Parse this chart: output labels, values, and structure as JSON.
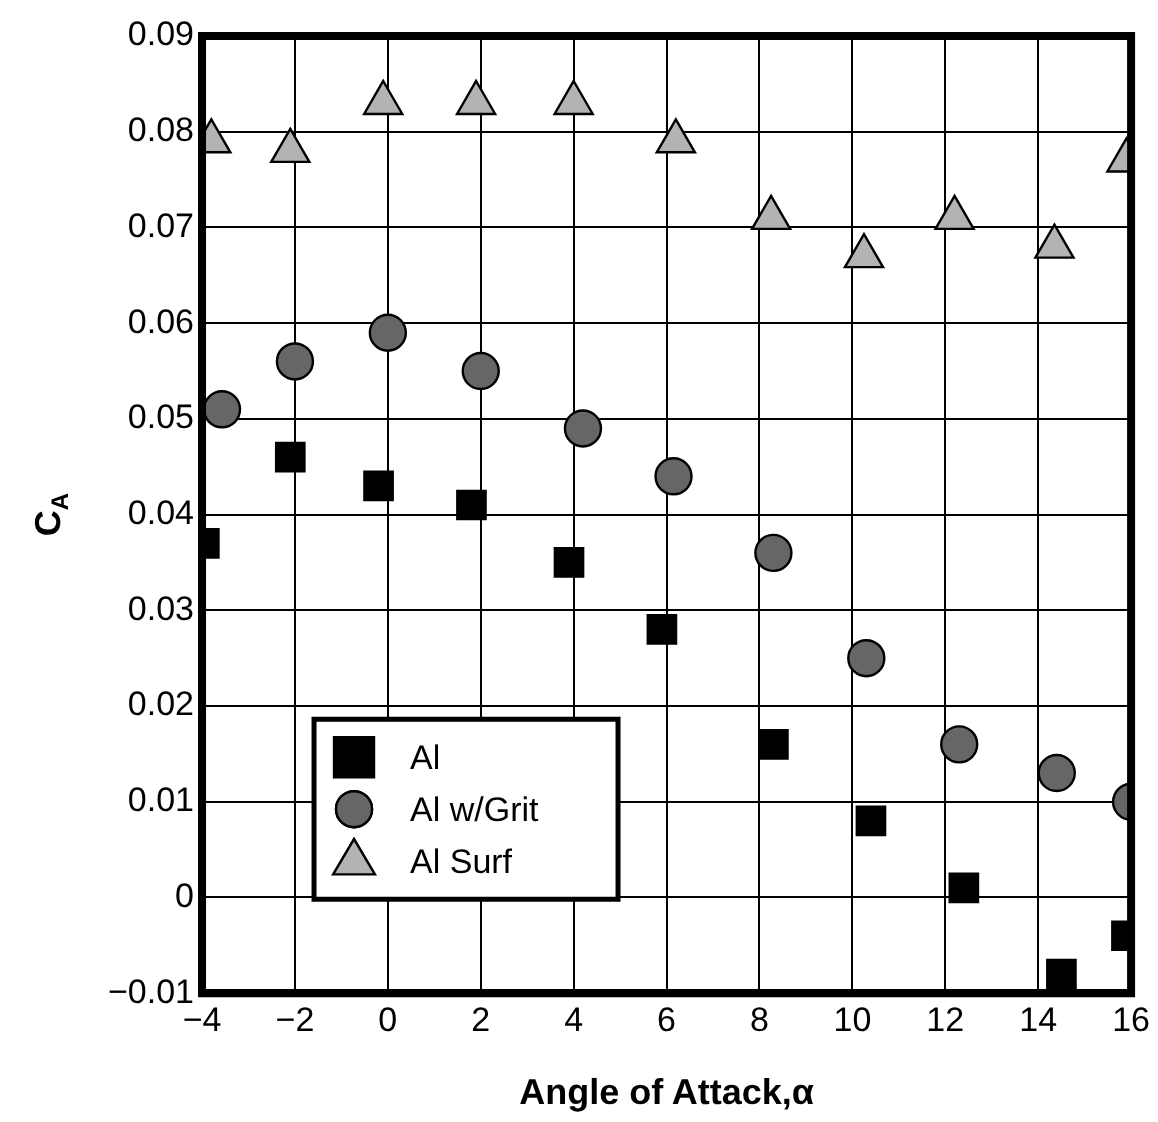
{
  "chart_data": {
    "type": "scatter",
    "xlabel": "Angle of Attack,α",
    "ylabel": "C$_{A}$",
    "xlim": [
      -4,
      16
    ],
    "xticks": [
      {
        "value": -4,
        "label": "−4"
      },
      {
        "value": -2,
        "label": "−2"
      },
      0,
      2,
      4,
      6,
      8,
      10,
      12,
      14,
      16
    ],
    "ylim": [
      -0.01,
      0.09
    ],
    "yticks": [
      {
        "value": -0.01,
        "label": "−0.01"
      },
      0,
      0.01,
      0.02,
      0.03,
      0.04,
      0.05,
      0.06,
      0.07,
      0.08,
      0.09
    ],
    "grid": true,
    "legend": "bottom left",
    "series": [
      {
        "name": "Al",
        "color": "#000000",
        "marker": "square",
        "x": [
          -3.95,
          -2.1,
          -0.2,
          1.8,
          3.9,
          5.9,
          8.3,
          10.4,
          12.4,
          14.5,
          15.9
        ],
        "values": [
          0.037,
          0.046,
          0.043,
          0.041,
          0.035,
          0.028,
          0.016,
          0.008,
          0.001,
          -0.008,
          -0.004
        ]
      },
      {
        "name": "Al w/Grit",
        "color": "#666666",
        "marker": "circle",
        "x": [
          -3.57,
          -2.0,
          0.0,
          2.0,
          4.2,
          6.15,
          8.3,
          10.3,
          12.3,
          14.4,
          16.0
        ],
        "values": [
          0.051,
          0.056,
          0.059,
          0.055,
          0.049,
          0.044,
          0.036,
          0.025,
          0.016,
          0.013,
          0.01
        ]
      },
      {
        "name": "Al Surf",
        "color": "#b3b3b3",
        "marker": "triangle",
        "x": [
          -3.8,
          -2.1,
          -0.1,
          1.9,
          4.0,
          6.2,
          8.25,
          10.25,
          12.2,
          14.35,
          15.9
        ],
        "values": [
          0.079,
          0.078,
          0.083,
          0.083,
          0.083,
          0.079,
          0.071,
          0.067,
          0.071,
          0.068,
          0.077
        ]
      }
    ]
  }
}
